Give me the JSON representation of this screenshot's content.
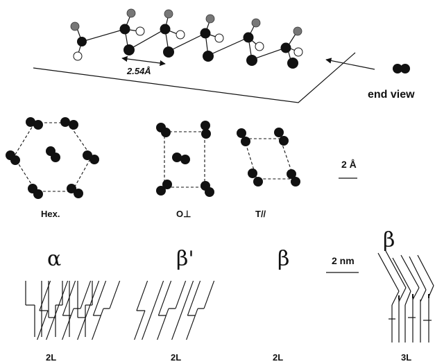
{
  "top": {
    "distance_label": "2.54Å",
    "end_view_label": "end view"
  },
  "subcells": {
    "labels": [
      "Hex.",
      "O⊥",
      "T//"
    ],
    "scale_label": "2 Å"
  },
  "polymorphs": {
    "greek_labels": [
      "α",
      "β'",
      "β",
      "β"
    ],
    "layer_labels": [
      "2L",
      "2L",
      "2L",
      "3L"
    ],
    "scale_label": "2 nm"
  }
}
